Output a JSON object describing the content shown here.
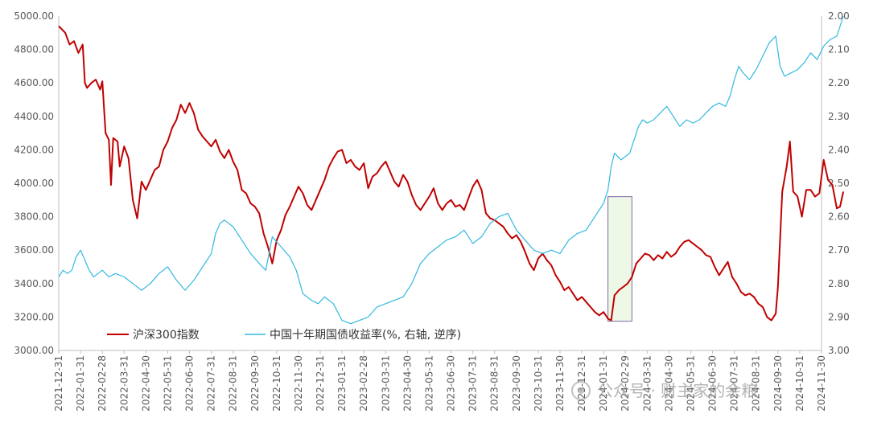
{
  "chart_data": {
    "type": "line",
    "title": "",
    "xlabel": "",
    "ylabel": "",
    "y_left": {
      "min": 3000,
      "max": 5000,
      "ticks": [
        "3000.00",
        "3200.00",
        "3400.00",
        "3600.00",
        "3800.00",
        "4000.00",
        "4200.00",
        "4400.00",
        "4600.00",
        "4800.00",
        "5000.00"
      ]
    },
    "y_right": {
      "min": 2.0,
      "max": 3.0,
      "reversed": true,
      "ticks": [
        "3.00",
        "2.90",
        "2.80",
        "2.70",
        "2.60",
        "2.50",
        "2.40",
        "2.30",
        "2.20",
        "2.10",
        "2.00"
      ]
    },
    "x_ticks": [
      "2021-12-31",
      "2022-01-31",
      "2022-02-28",
      "2022-03-31",
      "2022-04-30",
      "2022-05-31",
      "2022-06-30",
      "2022-07-31",
      "2022-08-31",
      "2022-09-30",
      "2022-10-31",
      "2022-11-30",
      "2022-12-31",
      "2023-01-31",
      "2023-02-28",
      "2023-03-31",
      "2023-04-30",
      "2023-05-31",
      "2023-06-30",
      "2023-07-31",
      "2023-08-31",
      "2023-09-30",
      "2023-10-31",
      "2023-11-30",
      "2023-12-31",
      "2024-01-31",
      "2024-02-29",
      "2024-03-31",
      "2024-04-30",
      "2024-05-31",
      "2024-06-30",
      "2024-07-31",
      "2024-08-31",
      "2024-09-30",
      "2024-10-31",
      "2024-11-30"
    ],
    "grid": false,
    "legend_position": "bottom-left",
    "series": [
      {
        "name": "沪深300指数",
        "axis": "left",
        "color": "#c00000",
        "values": [
          [
            0,
            4940
          ],
          [
            0.3,
            4900
          ],
          [
            0.5,
            4830
          ],
          [
            0.7,
            4850
          ],
          [
            0.9,
            4780
          ],
          [
            1.1,
            4830
          ],
          [
            1.2,
            4600
          ],
          [
            1.3,
            4570
          ],
          [
            1.5,
            4600
          ],
          [
            1.7,
            4620
          ],
          [
            1.9,
            4560
          ],
          [
            2.0,
            4610
          ],
          [
            2.15,
            4300
          ],
          [
            2.3,
            4260
          ],
          [
            2.4,
            3990
          ],
          [
            2.5,
            4270
          ],
          [
            2.7,
            4250
          ],
          [
            2.8,
            4100
          ],
          [
            3.0,
            4220
          ],
          [
            3.2,
            4150
          ],
          [
            3.4,
            3900
          ],
          [
            3.6,
            3790
          ],
          [
            3.8,
            4010
          ],
          [
            4.0,
            3960
          ],
          [
            4.2,
            4020
          ],
          [
            4.4,
            4080
          ],
          [
            4.6,
            4100
          ],
          [
            4.8,
            4200
          ],
          [
            5.0,
            4250
          ],
          [
            5.2,
            4330
          ],
          [
            5.4,
            4380
          ],
          [
            5.6,
            4470
          ],
          [
            5.8,
            4420
          ],
          [
            6.0,
            4480
          ],
          [
            6.2,
            4420
          ],
          [
            6.4,
            4320
          ],
          [
            6.6,
            4280
          ],
          [
            6.8,
            4250
          ],
          [
            7.0,
            4220
          ],
          [
            7.2,
            4260
          ],
          [
            7.4,
            4190
          ],
          [
            7.6,
            4150
          ],
          [
            7.8,
            4200
          ],
          [
            8.0,
            4130
          ],
          [
            8.2,
            4080
          ],
          [
            8.4,
            3960
          ],
          [
            8.6,
            3940
          ],
          [
            8.8,
            3880
          ],
          [
            9.0,
            3860
          ],
          [
            9.2,
            3820
          ],
          [
            9.4,
            3700
          ],
          [
            9.6,
            3620
          ],
          [
            9.8,
            3520
          ],
          [
            10.0,
            3660
          ],
          [
            10.2,
            3720
          ],
          [
            10.4,
            3810
          ],
          [
            10.6,
            3860
          ],
          [
            10.8,
            3920
          ],
          [
            11.0,
            3980
          ],
          [
            11.2,
            3940
          ],
          [
            11.4,
            3870
          ],
          [
            11.6,
            3840
          ],
          [
            11.8,
            3900
          ],
          [
            12.0,
            3960
          ],
          [
            12.2,
            4020
          ],
          [
            12.4,
            4100
          ],
          [
            12.6,
            4150
          ],
          [
            12.8,
            4190
          ],
          [
            13.0,
            4200
          ],
          [
            13.2,
            4120
          ],
          [
            13.4,
            4140
          ],
          [
            13.6,
            4100
          ],
          [
            13.8,
            4080
          ],
          [
            14.0,
            4120
          ],
          [
            14.2,
            3970
          ],
          [
            14.4,
            4040
          ],
          [
            14.6,
            4060
          ],
          [
            14.8,
            4100
          ],
          [
            15.0,
            4130
          ],
          [
            15.2,
            4070
          ],
          [
            15.4,
            4010
          ],
          [
            15.6,
            3980
          ],
          [
            15.8,
            4050
          ],
          [
            16.0,
            4010
          ],
          [
            16.2,
            3930
          ],
          [
            16.4,
            3870
          ],
          [
            16.6,
            3840
          ],
          [
            16.8,
            3880
          ],
          [
            17.0,
            3920
          ],
          [
            17.2,
            3970
          ],
          [
            17.4,
            3880
          ],
          [
            17.6,
            3840
          ],
          [
            17.8,
            3880
          ],
          [
            18.0,
            3900
          ],
          [
            18.2,
            3860
          ],
          [
            18.4,
            3870
          ],
          [
            18.6,
            3840
          ],
          [
            18.8,
            3910
          ],
          [
            19.0,
            3980
          ],
          [
            19.2,
            4020
          ],
          [
            19.4,
            3960
          ],
          [
            19.6,
            3820
          ],
          [
            19.8,
            3790
          ],
          [
            20.0,
            3780
          ],
          [
            20.2,
            3760
          ],
          [
            20.4,
            3740
          ],
          [
            20.6,
            3700
          ],
          [
            20.8,
            3670
          ],
          [
            21.0,
            3690
          ],
          [
            21.2,
            3650
          ],
          [
            21.4,
            3590
          ],
          [
            21.6,
            3520
          ],
          [
            21.8,
            3480
          ],
          [
            22.0,
            3550
          ],
          [
            22.2,
            3580
          ],
          [
            22.4,
            3540
          ],
          [
            22.6,
            3510
          ],
          [
            22.8,
            3450
          ],
          [
            23.0,
            3410
          ],
          [
            23.2,
            3360
          ],
          [
            23.4,
            3380
          ],
          [
            23.6,
            3340
          ],
          [
            23.8,
            3300
          ],
          [
            24.0,
            3320
          ],
          [
            24.2,
            3290
          ],
          [
            24.4,
            3260
          ],
          [
            24.6,
            3230
          ],
          [
            24.8,
            3210
          ],
          [
            25.0,
            3230
          ],
          [
            25.2,
            3190
          ],
          [
            25.35,
            3180
          ],
          [
            25.5,
            3330
          ],
          [
            25.7,
            3360
          ],
          [
            25.9,
            3380
          ],
          [
            26.1,
            3400
          ],
          [
            26.3,
            3440
          ],
          [
            26.5,
            3520
          ],
          [
            26.7,
            3550
          ],
          [
            26.9,
            3580
          ],
          [
            27.1,
            3570
          ],
          [
            27.3,
            3540
          ],
          [
            27.5,
            3570
          ],
          [
            27.7,
            3550
          ],
          [
            27.9,
            3590
          ],
          [
            28.1,
            3560
          ],
          [
            28.3,
            3580
          ],
          [
            28.5,
            3620
          ],
          [
            28.7,
            3650
          ],
          [
            28.9,
            3660
          ],
          [
            29.1,
            3640
          ],
          [
            29.3,
            3620
          ],
          [
            29.5,
            3600
          ],
          [
            29.7,
            3570
          ],
          [
            29.9,
            3560
          ],
          [
            30.1,
            3500
          ],
          [
            30.3,
            3450
          ],
          [
            30.5,
            3490
          ],
          [
            30.7,
            3530
          ],
          [
            30.9,
            3440
          ],
          [
            31.1,
            3400
          ],
          [
            31.3,
            3350
          ],
          [
            31.5,
            3330
          ],
          [
            31.7,
            3340
          ],
          [
            31.9,
            3320
          ],
          [
            32.1,
            3280
          ],
          [
            32.3,
            3260
          ],
          [
            32.5,
            3200
          ],
          [
            32.7,
            3180
          ],
          [
            32.9,
            3220
          ],
          [
            33.0,
            3380
          ],
          [
            33.2,
            3950
          ],
          [
            33.4,
            4100
          ],
          [
            33.55,
            4250
          ],
          [
            33.7,
            3950
          ],
          [
            33.9,
            3920
          ],
          [
            34.1,
            3800
          ],
          [
            34.3,
            3960
          ],
          [
            34.5,
            3960
          ],
          [
            34.7,
            3920
          ],
          [
            34.9,
            3940
          ],
          [
            35.1,
            4140
          ],
          [
            35.3,
            4020
          ],
          [
            35.5,
            3990
          ],
          [
            35.7,
            3850
          ],
          [
            35.85,
            3860
          ],
          [
            36.0,
            3950
          ]
        ]
      },
      {
        "name": "中国十年期国债收益率(%, 右轴, 逆序)",
        "axis": "right",
        "color": "#33b8e0",
        "values": [
          [
            0,
            2.78
          ],
          [
            0.2,
            2.76
          ],
          [
            0.4,
            2.77
          ],
          [
            0.6,
            2.76
          ],
          [
            0.8,
            2.72
          ],
          [
            1.0,
            2.7
          ],
          [
            1.2,
            2.73
          ],
          [
            1.4,
            2.76
          ],
          [
            1.6,
            2.78
          ],
          [
            1.8,
            2.77
          ],
          [
            2.0,
            2.76
          ],
          [
            2.3,
            2.78
          ],
          [
            2.6,
            2.77
          ],
          [
            3.0,
            2.78
          ],
          [
            3.4,
            2.8
          ],
          [
            3.8,
            2.82
          ],
          [
            4.2,
            2.8
          ],
          [
            4.6,
            2.77
          ],
          [
            5.0,
            2.75
          ],
          [
            5.4,
            2.79
          ],
          [
            5.8,
            2.82
          ],
          [
            6.2,
            2.79
          ],
          [
            6.6,
            2.75
          ],
          [
            7.0,
            2.71
          ],
          [
            7.2,
            2.65
          ],
          [
            7.4,
            2.62
          ],
          [
            7.6,
            2.61
          ],
          [
            8.0,
            2.63
          ],
          [
            8.4,
            2.67
          ],
          [
            8.8,
            2.71
          ],
          [
            9.2,
            2.74
          ],
          [
            9.5,
            2.76
          ],
          [
            9.8,
            2.66
          ],
          [
            10.2,
            2.69
          ],
          [
            10.6,
            2.72
          ],
          [
            10.9,
            2.76
          ],
          [
            11.2,
            2.83
          ],
          [
            11.6,
            2.85
          ],
          [
            11.9,
            2.86
          ],
          [
            12.2,
            2.84
          ],
          [
            12.6,
            2.86
          ],
          [
            13.0,
            2.91
          ],
          [
            13.4,
            2.92
          ],
          [
            13.8,
            2.91
          ],
          [
            14.2,
            2.9
          ],
          [
            14.6,
            2.87
          ],
          [
            15.0,
            2.86
          ],
          [
            15.4,
            2.85
          ],
          [
            15.8,
            2.84
          ],
          [
            16.2,
            2.8
          ],
          [
            16.6,
            2.74
          ],
          [
            17.0,
            2.71
          ],
          [
            17.4,
            2.69
          ],
          [
            17.8,
            2.67
          ],
          [
            18.2,
            2.66
          ],
          [
            18.6,
            2.64
          ],
          [
            19.0,
            2.68
          ],
          [
            19.4,
            2.66
          ],
          [
            19.8,
            2.62
          ],
          [
            20.2,
            2.6
          ],
          [
            20.6,
            2.59
          ],
          [
            21.0,
            2.64
          ],
          [
            21.4,
            2.67
          ],
          [
            21.8,
            2.7
          ],
          [
            22.2,
            2.71
          ],
          [
            22.6,
            2.7
          ],
          [
            23.0,
            2.71
          ],
          [
            23.4,
            2.67
          ],
          [
            23.8,
            2.65
          ],
          [
            24.2,
            2.64
          ],
          [
            24.6,
            2.6
          ],
          [
            25.0,
            2.56
          ],
          [
            25.2,
            2.52
          ],
          [
            25.35,
            2.45
          ],
          [
            25.5,
            2.41
          ],
          [
            25.8,
            2.43
          ],
          [
            26.0,
            2.42
          ],
          [
            26.2,
            2.41
          ],
          [
            26.4,
            2.37
          ],
          [
            26.6,
            2.33
          ],
          [
            26.8,
            2.31
          ],
          [
            27.0,
            2.32
          ],
          [
            27.3,
            2.31
          ],
          [
            27.6,
            2.29
          ],
          [
            27.9,
            2.27
          ],
          [
            28.2,
            2.3
          ],
          [
            28.5,
            2.33
          ],
          [
            28.8,
            2.31
          ],
          [
            29.1,
            2.32
          ],
          [
            29.4,
            2.31
          ],
          [
            29.7,
            2.29
          ],
          [
            30.0,
            2.27
          ],
          [
            30.3,
            2.26
          ],
          [
            30.6,
            2.27
          ],
          [
            30.8,
            2.24
          ],
          [
            31.0,
            2.19
          ],
          [
            31.2,
            2.15
          ],
          [
            31.4,
            2.17
          ],
          [
            31.7,
            2.19
          ],
          [
            32.0,
            2.16
          ],
          [
            32.3,
            2.12
          ],
          [
            32.6,
            2.08
          ],
          [
            32.9,
            2.06
          ],
          [
            33.1,
            2.15
          ],
          [
            33.3,
            2.18
          ],
          [
            33.6,
            2.17
          ],
          [
            33.9,
            2.16
          ],
          [
            34.2,
            2.14
          ],
          [
            34.5,
            2.11
          ],
          [
            34.8,
            2.13
          ],
          [
            35.1,
            2.09
          ],
          [
            35.4,
            2.07
          ],
          [
            35.7,
            2.06
          ],
          [
            36.0,
            2.0
          ]
        ]
      }
    ],
    "highlight": {
      "x_start": 25.2,
      "x_end": 26.3,
      "y_top": 3920,
      "y_bottom": 3175,
      "fill": "#eef8e6",
      "stroke": "#7f6aa6"
    }
  },
  "watermark": {
    "text": "公众号 · 财主家的余粮"
  }
}
